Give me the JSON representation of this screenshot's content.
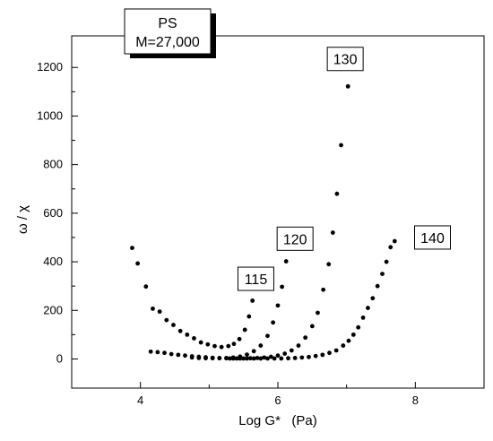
{
  "chart_data": {
    "type": "scatter",
    "xlabel": "Log G*   (Pa)",
    "ylabel": "ω / χ",
    "xlim": [
      3,
      9
    ],
    "ylim": [
      -120,
      1330
    ],
    "xticks": [
      4,
      6,
      8
    ],
    "yticks": [
      0,
      200,
      400,
      600,
      800,
      1000,
      1200
    ],
    "grid": false,
    "title_box": {
      "line1": "PS",
      "line2": "M=27,000"
    },
    "series": [
      {
        "name": "115",
        "x": [
          3.88,
          3.96,
          4.08,
          4.18,
          4.28,
          4.38,
          4.48,
          4.58,
          4.68,
          4.78,
          4.88,
          4.98,
          5.08,
          5.18,
          5.28,
          5.36,
          5.44,
          5.52,
          5.58,
          5.63
        ],
        "y": [
          457,
          393,
          298,
          207,
          195,
          160,
          140,
          115,
          100,
          85,
          68,
          60,
          53,
          49,
          53,
          62,
          82,
          120,
          175,
          240
        ]
      },
      {
        "name": "120",
        "x": [
          4.75,
          4.85,
          4.95,
          5.05,
          5.15,
          5.25,
          5.35,
          5.45,
          5.55,
          5.65,
          5.75,
          5.85,
          5.93,
          6.0,
          6.06,
          6.12
        ],
        "y": [
          6,
          4,
          3,
          3,
          3,
          4,
          6,
          10,
          18,
          32,
          55,
          95,
          150,
          220,
          297,
          402
        ]
      },
      {
        "name": "130",
        "x": [
          5.3,
          5.4,
          5.5,
          5.6,
          5.7,
          5.8,
          5.9,
          6.0,
          6.1,
          6.2,
          6.3,
          6.4,
          6.5,
          6.58,
          6.66,
          6.74,
          6.8,
          6.86,
          6.92,
          7.02
        ],
        "y": [
          2,
          2,
          2,
          3,
          4,
          6,
          9,
          14,
          22,
          35,
          55,
          88,
          135,
          190,
          285,
          390,
          520,
          680,
          880,
          1122
        ]
      },
      {
        "name": "140",
        "x": [
          4.15,
          4.25,
          4.35,
          4.45,
          4.55,
          4.65,
          4.75,
          4.85,
          4.95,
          5.05,
          5.15,
          5.25,
          5.35,
          5.45,
          5.55,
          5.65,
          5.75,
          5.85,
          5.95,
          6.05,
          6.15,
          6.25,
          6.35,
          6.45,
          6.55,
          6.65,
          6.75,
          6.85,
          6.95,
          7.03,
          7.1,
          7.17,
          7.24,
          7.31,
          7.38,
          7.45,
          7.52,
          7.58,
          7.64,
          7.7
        ],
        "y": [
          30,
          28,
          25,
          20,
          17,
          14,
          11,
          9,
          7,
          5,
          4,
          3,
          2,
          2,
          2,
          2,
          2,
          2,
          2,
          2,
          3,
          4,
          6,
          8,
          12,
          17,
          25,
          35,
          55,
          75,
          100,
          130,
          170,
          210,
          250,
          300,
          350,
          400,
          460,
          485
        ]
      }
    ],
    "series_labels": [
      {
        "text": "115",
        "x": 5.68,
        "y": 330
      },
      {
        "text": "120",
        "x": 6.25,
        "y": 495
      },
      {
        "text": "130",
        "x": 6.98,
        "y": 1235
      },
      {
        "text": "140",
        "x": 8.25,
        "y": 500
      }
    ]
  }
}
